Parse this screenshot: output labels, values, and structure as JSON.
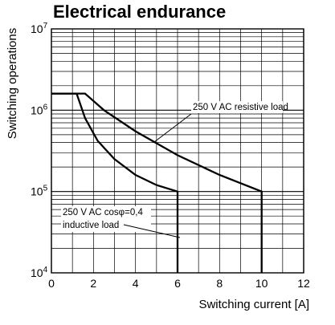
{
  "chart_data": {
    "type": "line",
    "title": "Electrical endurance",
    "xlabel": "Switching current [A]",
    "ylabel": "Switching operations",
    "xlim": [
      0,
      12
    ],
    "ylim": [
      10000,
      10000000
    ],
    "y_scale": "log",
    "x_ticks": [
      "0",
      "2",
      "4",
      "6",
      "8",
      "10",
      "12"
    ],
    "y_ticks": [
      {
        "base": "10",
        "exp": "4"
      },
      {
        "base": "10",
        "exp": "5"
      },
      {
        "base": "10",
        "exp": "6"
      },
      {
        "base": "10",
        "exp": "7"
      }
    ],
    "grid": true,
    "series": [
      {
        "name": "250 V AC resistive load",
        "x": [
          0,
          1.6,
          2.5,
          4,
          6,
          8,
          10,
          10
        ],
        "y": [
          1600000,
          1600000,
          1000000,
          550000,
          280000,
          160000,
          100000,
          10000
        ]
      },
      {
        "name": "250 V AC cosφ=0,4 inductive load",
        "x": [
          0,
          1.2,
          1.6,
          2.2,
          3,
          4,
          5,
          6,
          6
        ],
        "y": [
          1600000,
          1600000,
          800000,
          420000,
          250000,
          160000,
          120000,
          100000,
          10000
        ]
      }
    ],
    "annotations": [
      {
        "text": "250 V AC resistive load"
      },
      {
        "text": "250 V AC cosφ=0,4"
      },
      {
        "text": "inductive load"
      }
    ]
  }
}
